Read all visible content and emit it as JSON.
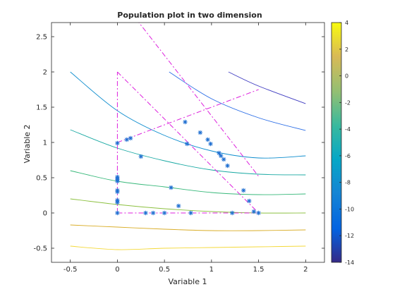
{
  "chart_data": {
    "type": "scatter",
    "title": "Population plot in two dimension",
    "xlabel": "Variable  1",
    "ylabel": "Variable  2",
    "xlim": [
      -0.7,
      2.2
    ],
    "ylim": [
      -0.7,
      2.7
    ],
    "xticks": [
      -0.5,
      0,
      0.5,
      1,
      1.5,
      2
    ],
    "xtick_labels": [
      "-0.5",
      "0",
      "0.5",
      "1",
      "1.5",
      "2"
    ],
    "yticks": [
      -0.5,
      0,
      0.5,
      1,
      1.5,
      2,
      2.5
    ],
    "ytick_labels": [
      "-0.5",
      "0",
      "0.5",
      "1",
      "1.5",
      "2",
      "2.5"
    ],
    "grid": false,
    "colorbar": {
      "colormap": "parula",
      "range": [
        -14,
        4
      ],
      "ticks": [
        4,
        2,
        0,
        -2,
        -4,
        -6,
        -8,
        -10,
        -12,
        -14
      ],
      "tick_labels": [
        "4",
        "2",
        "0",
        "-2",
        "-4",
        "-6",
        "-8",
        "-10",
        "-12",
        "-14"
      ]
    },
    "contours": [
      {
        "level": -11.5,
        "color": "#3d3ac0",
        "x_start": 1.18,
        "x": [
          1.18,
          1.5,
          2.0
        ],
        "y": [
          2.0,
          1.8,
          1.55
        ]
      },
      {
        "level": -9.5,
        "color": "#2a6de6",
        "x_start": 0.55,
        "x": [
          0.55,
          1.0,
          1.5,
          2.0
        ],
        "y": [
          2.0,
          1.62,
          1.35,
          1.17
        ]
      },
      {
        "level": -7,
        "color": "#0e8dce",
        "x_start": -0.5,
        "x": [
          -0.5,
          0.0,
          0.5,
          1.0,
          1.5,
          2.0
        ],
        "y": [
          2.0,
          1.45,
          1.1,
          0.88,
          0.78,
          0.81
        ]
      },
      {
        "level": -5,
        "color": "#17a8a2",
        "x_start": -0.5,
        "x": [
          -0.5,
          0.0,
          0.5,
          1.0,
          1.5,
          2.0
        ],
        "y": [
          1.18,
          0.92,
          0.74,
          0.61,
          0.55,
          0.54
        ]
      },
      {
        "level": -3,
        "color": "#37b87a",
        "x_start": -0.5,
        "x": [
          -0.5,
          0.0,
          0.5,
          1.0,
          1.5,
          2.0
        ],
        "y": [
          0.6,
          0.45,
          0.37,
          0.29,
          0.26,
          0.27
        ]
      },
      {
        "level": -1,
        "color": "#8cc040",
        "x_start": -0.5,
        "x": [
          -0.5,
          0.0,
          0.5,
          1.0,
          1.5,
          2.0
        ],
        "y": [
          0.2,
          0.12,
          0.06,
          0.02,
          0.0,
          0.0
        ]
      },
      {
        "level": 0.5,
        "color": "#d9ad27",
        "x_start": -0.5,
        "x": [
          -0.5,
          0.0,
          0.5,
          1.0,
          1.5,
          2.0
        ],
        "y": [
          -0.17,
          -0.2,
          -0.23,
          -0.25,
          -0.25,
          -0.24
        ]
      },
      {
        "level": 2,
        "color": "#f4d93a",
        "x_start": -0.5,
        "x": [
          -0.5,
          0.0,
          0.5,
          1.0,
          1.5,
          2.0
        ],
        "y": [
          -0.47,
          -0.52,
          -0.5,
          -0.49,
          -0.48,
          -0.47
        ]
      }
    ],
    "constraint_lines": [
      {
        "color": "#dd22dd",
        "x": [
          0.0,
          0.0
        ],
        "y": [
          0.0,
          2.0
        ]
      },
      {
        "color": "#dd22dd",
        "x": [
          0.0,
          1.5
        ],
        "y": [
          0.0,
          0.0
        ]
      },
      {
        "color": "#dd22dd",
        "x": [
          0.0,
          1.5
        ],
        "y": [
          2.0,
          0.0
        ]
      },
      {
        "color": "#dd22dd",
        "x": [
          0.0,
          1.5
        ],
        "y": [
          1.0,
          1.75
        ]
      },
      {
        "color": "#dd22dd",
        "x": [
          0.2,
          1.5
        ],
        "y": [
          2.75,
          0.52
        ]
      }
    ],
    "series": [
      {
        "marker": "*",
        "color": "#1f6fd1",
        "x": [
          0.0,
          0.0,
          0.0,
          0.0,
          0.0,
          0.0,
          0.0,
          0.0,
          0.0,
          0.1,
          0.14,
          0.25,
          0.3,
          0.38,
          0.5,
          0.57,
          0.65,
          0.72,
          0.74,
          0.78,
          0.88,
          0.96,
          0.99,
          1.08,
          1.1,
          1.13,
          1.17,
          1.34,
          1.4,
          1.45,
          1.5,
          1.22
        ],
        "y": [
          0.0,
          0.15,
          0.18,
          0.3,
          0.32,
          0.45,
          0.48,
          0.51,
          0.99,
          1.04,
          1.06,
          0.8,
          0.0,
          0.0,
          0.0,
          0.36,
          0.1,
          1.29,
          0.98,
          0.0,
          1.14,
          1.04,
          0.98,
          0.85,
          0.81,
          0.76,
          0.67,
          0.32,
          0.17,
          0.02,
          0.0,
          0.0
        ]
      }
    ]
  }
}
